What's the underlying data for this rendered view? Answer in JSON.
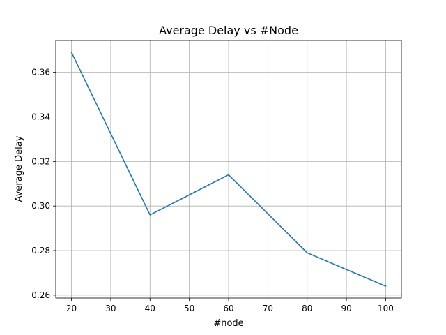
{
  "chart_data": {
    "type": "line",
    "title": "Average Delay vs #Node",
    "xlabel": "#node",
    "ylabel": "Average Delay",
    "x": [
      20,
      40,
      60,
      80,
      100
    ],
    "series": [
      {
        "values": [
          0.369,
          0.296,
          0.314,
          0.279,
          0.264
        ],
        "color": "#1f77b4"
      }
    ],
    "xlim": [
      16,
      104
    ],
    "ylim": [
      0.2587,
      0.3743
    ],
    "xticks": [
      20,
      30,
      40,
      50,
      60,
      70,
      80,
      90,
      100
    ],
    "xtick_labels": [
      "20",
      "30",
      "40",
      "50",
      "60",
      "70",
      "80",
      "90",
      "100"
    ],
    "yticks": [
      0.26,
      0.28,
      0.3,
      0.32,
      0.34,
      0.36
    ],
    "ytick_labels": [
      "0.26",
      "0.28",
      "0.30",
      "0.32",
      "0.34",
      "0.36"
    ],
    "grid": true,
    "legend": "none"
  }
}
